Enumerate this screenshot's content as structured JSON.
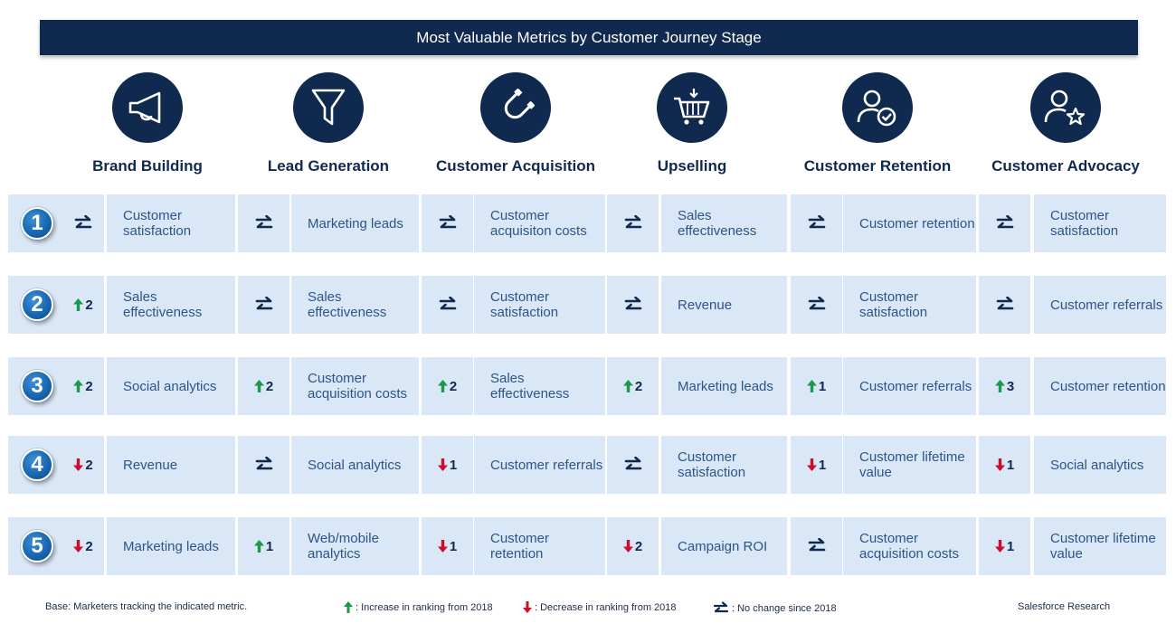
{
  "title": "Most Valuable Metrics by Customer Journey Stage",
  "colors": {
    "navy": "#10294f",
    "cell_background": "#d9e7f7",
    "increase": "#1a9a4a",
    "decrease": "#c8102e"
  },
  "stages": [
    {
      "name": "Brand Building",
      "icon": "megaphone-icon"
    },
    {
      "name": "Lead Generation",
      "icon": "funnel-icon"
    },
    {
      "name": "Customer Acquisition",
      "icon": "magnet-icon"
    },
    {
      "name": "Upselling",
      "icon": "shopping-cart-icon"
    },
    {
      "name": "Customer Retention",
      "icon": "user-check-icon"
    },
    {
      "name": "Customer Advocacy",
      "icon": "user-star-icon"
    }
  ],
  "ranks": [
    {
      "rank": "1",
      "entries": [
        {
          "change": "none",
          "amount": "",
          "metric": "Customer satisfaction"
        },
        {
          "change": "none",
          "amount": "",
          "metric": "Marketing leads"
        },
        {
          "change": "none",
          "amount": "",
          "metric": "Customer acquisiton costs"
        },
        {
          "change": "none",
          "amount": "",
          "metric": "Sales effectiveness"
        },
        {
          "change": "none",
          "amount": "",
          "metric": "Customer retention"
        },
        {
          "change": "none",
          "amount": "",
          "metric": "Customer satisfaction"
        }
      ]
    },
    {
      "rank": "2",
      "entries": [
        {
          "change": "up",
          "amount": "2",
          "metric": "Sales effectiveness"
        },
        {
          "change": "none",
          "amount": "",
          "metric": "Sales effectiveness"
        },
        {
          "change": "none",
          "amount": "",
          "metric": "Customer satisfaction"
        },
        {
          "change": "none",
          "amount": "",
          "metric": "Revenue"
        },
        {
          "change": "none",
          "amount": "",
          "metric": "Customer satisfaction"
        },
        {
          "change": "none",
          "amount": "",
          "metric": "Customer referrals"
        }
      ]
    },
    {
      "rank": "3",
      "entries": [
        {
          "change": "up",
          "amount": "2",
          "metric": "Social analytics"
        },
        {
          "change": "up",
          "amount": "2",
          "metric": "Customer acquisition costs"
        },
        {
          "change": "up",
          "amount": "2",
          "metric": "Sales effectiveness"
        },
        {
          "change": "up",
          "amount": "2",
          "metric": "Marketing leads"
        },
        {
          "change": "up",
          "amount": "1",
          "metric": "Customer referrals"
        },
        {
          "change": "up",
          "amount": "3",
          "metric": "Customer retention"
        }
      ]
    },
    {
      "rank": "4",
      "entries": [
        {
          "change": "down",
          "amount": "2",
          "metric": "Revenue"
        },
        {
          "change": "none",
          "amount": "",
          "metric": "Social analytics"
        },
        {
          "change": "down",
          "amount": "1",
          "metric": "Customer referrals"
        },
        {
          "change": "none",
          "amount": "",
          "metric": "Customer satisfaction"
        },
        {
          "change": "down",
          "amount": "1",
          "metric": "Customer lifetime value"
        },
        {
          "change": "down",
          "amount": "1",
          "metric": "Social analytics"
        }
      ]
    },
    {
      "rank": "5",
      "entries": [
        {
          "change": "down",
          "amount": "2",
          "metric": "Marketing leads"
        },
        {
          "change": "up",
          "amount": "1",
          "metric": "Web/mobile analytics"
        },
        {
          "change": "down",
          "amount": "1",
          "metric": "Customer retention"
        },
        {
          "change": "down",
          "amount": "2",
          "metric": "Campaign ROI"
        },
        {
          "change": "none",
          "amount": "",
          "metric": "Customer acquisition costs"
        },
        {
          "change": "down",
          "amount": "1",
          "metric": "Customer lifetime value"
        }
      ]
    }
  ],
  "footer": {
    "base_note": "Base: Marketers tracking the indicated metric.",
    "legend_increase": ": Increase in ranking from 2018",
    "legend_decrease": ": Decrease in ranking from 2018",
    "legend_no_change": ": No change since 2018",
    "source": "Salesforce Research"
  }
}
